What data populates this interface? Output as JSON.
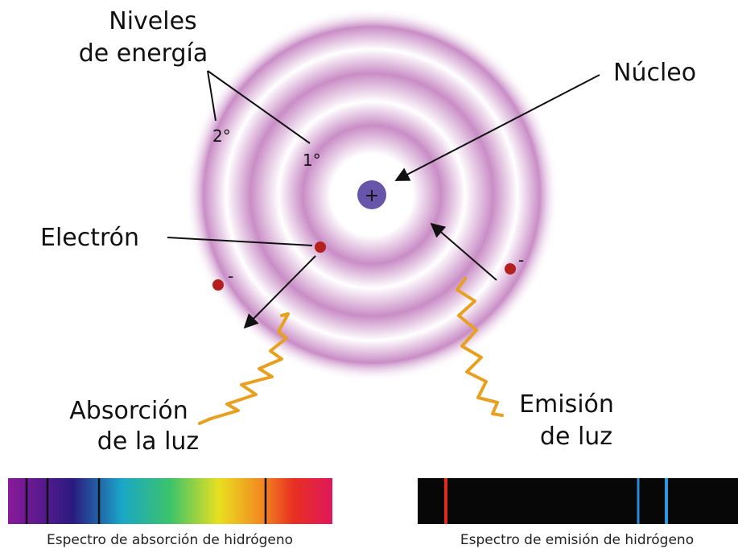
{
  "labels": {
    "energy_levels": [
      "Niveles",
      "de energía"
    ],
    "level_2": "2°",
    "level_1": "1°",
    "nucleus": "Núcleo",
    "nucleus_charge": "+",
    "electron": "Electrón",
    "electron_charge": "-",
    "absorption": [
      "Absorción",
      "de la luz"
    ],
    "emission": [
      "Emisión",
      "de luz"
    ]
  },
  "spectra": {
    "absorption": "Espectro de absorción de hidrógeno",
    "emission": "Espectro de emisión de hidrógeno"
  }
}
